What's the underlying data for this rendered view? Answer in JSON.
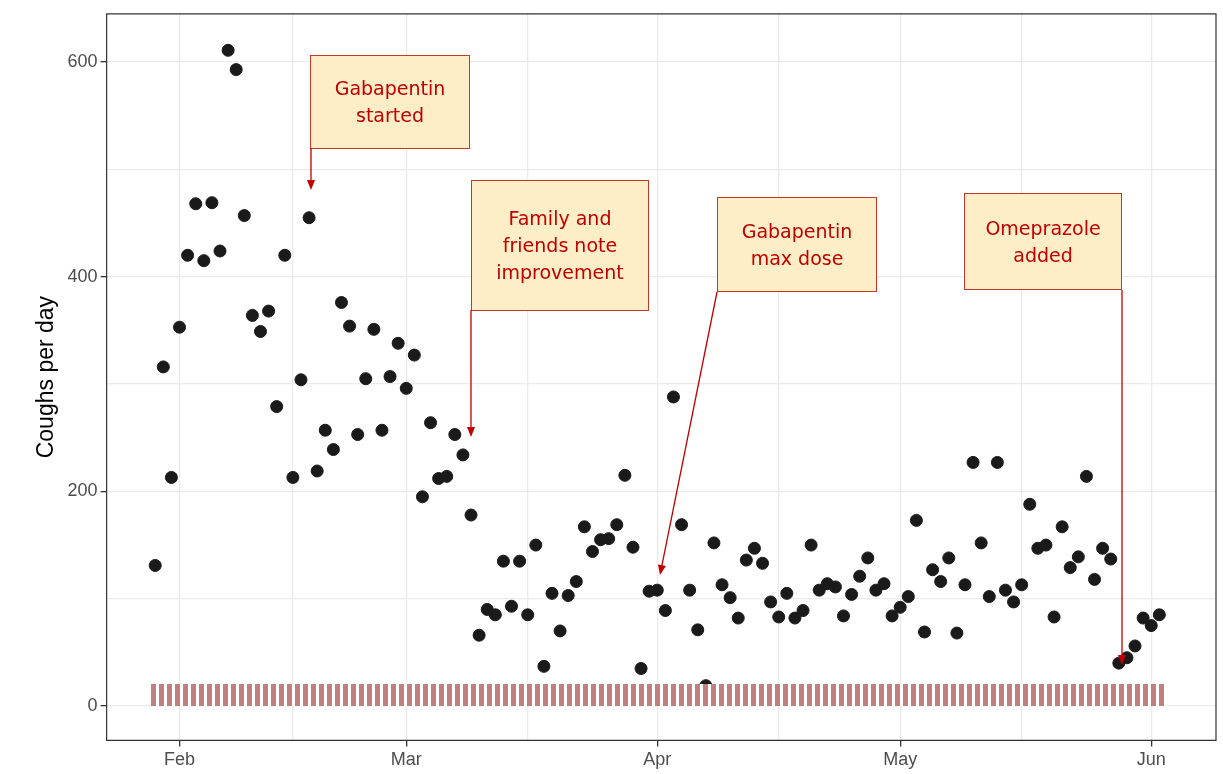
{
  "chart_data": {
    "type": "scatter",
    "ylabel": "Coughs per day",
    "x": [
      "--01-29",
      "--01-30",
      "--01-31",
      "--02-01",
      "--02-02",
      "--02-03",
      "--02-04",
      "--02-05",
      "--02-06",
      "--02-07",
      "--02-08",
      "--02-09",
      "--02-10",
      "--02-11",
      "--02-12",
      "--02-13",
      "--02-14",
      "--02-15",
      "--02-16",
      "--02-17",
      "--02-18",
      "--02-19",
      "--02-20",
      "--02-21",
      "--02-22",
      "--02-23",
      "--02-24",
      "--02-25",
      "--02-26",
      "--02-27",
      "--02-28",
      "--03-01",
      "--03-02",
      "--03-03",
      "--03-04",
      "--03-05",
      "--03-06",
      "--03-07",
      "--03-08",
      "--03-09",
      "--03-10",
      "--03-11",
      "--03-12",
      "--03-13",
      "--03-14",
      "--03-15",
      "--03-16",
      "--03-17",
      "--03-18",
      "--03-19",
      "--03-20",
      "--03-21",
      "--03-22",
      "--03-23",
      "--03-24",
      "--03-25",
      "--03-26",
      "--03-27",
      "--03-28",
      "--03-29",
      "--03-30",
      "--03-31",
      "--04-01",
      "--04-02",
      "--04-03",
      "--04-04",
      "--04-05",
      "--04-06",
      "--04-07",
      "--04-08",
      "--04-09",
      "--04-10",
      "--04-11",
      "--04-12",
      "--04-13",
      "--04-14",
      "--04-15",
      "--04-16",
      "--04-17",
      "--04-18",
      "--04-19",
      "--04-20",
      "--04-21",
      "--04-22",
      "--04-23",
      "--04-24",
      "--04-25",
      "--04-26",
      "--04-27",
      "--04-28",
      "--04-29",
      "--04-30",
      "--05-01",
      "--05-02",
      "--05-03",
      "--05-04",
      "--05-05",
      "--05-06",
      "--05-07",
      "--05-08",
      "--05-09",
      "--05-10",
      "--05-11",
      "--05-12",
      "--05-13",
      "--05-14",
      "--05-15",
      "--05-16",
      "--05-17",
      "--05-18",
      "--05-19",
      "--05-20",
      "--05-21",
      "--05-22",
      "--05-23",
      "--05-24",
      "--05-25",
      "--05-26",
      "--05-27",
      "--05-28",
      "--05-29",
      "--05-30",
      "--05-31",
      "--06-01",
      "--06-02"
    ],
    "series": [
      {
        "color": "#1a1a1a",
        "values": [
          131,
          316,
          213,
          353,
          420,
          468,
          415,
          469,
          424,
          611,
          593,
          457,
          364,
          349,
          368,
          279,
          420,
          213,
          304,
          455,
          219,
          257,
          239,
          376,
          354,
          253,
          305,
          351,
          257,
          307,
          338,
          296,
          327,
          195,
          264,
          212,
          214,
          253,
          234,
          178,
          66,
          90,
          85,
          135,
          93,
          135,
          85,
          150,
          37,
          105,
          70,
          103,
          116,
          167,
          144,
          155,
          156,
          169,
          215,
          148,
          35,
          107,
          108,
          89,
          288,
          169,
          108,
          71,
          19,
          152,
          113,
          101,
          82,
          136,
          147,
          133,
          97,
          83,
          105,
          82,
          89,
          150,
          108,
          114,
          111,
          84,
          104,
          121,
          138,
          108,
          114,
          84,
          92,
          102,
          173,
          69,
          127,
          116,
          138,
          68,
          113,
          227,
          152,
          102,
          227,
          108,
          97,
          113,
          188,
          147,
          150,
          83,
          167,
          129,
          139,
          214,
          118,
          147,
          137,
          40,
          45,
          56,
          82,
          75,
          85
        ]
      }
    ],
    "marker": "circle",
    "xlim": [
      "--01-23",
      "--06-09"
    ],
    "xticks": [
      {
        "value": "--02-01",
        "label": "Feb"
      },
      {
        "value": "--02-15",
        "label": null
      },
      {
        "value": "--03-01",
        "label": "Mar"
      },
      {
        "value": "--03-16",
        "label": null
      },
      {
        "value": "--04-01",
        "label": "Apr"
      },
      {
        "value": "--04-16",
        "label": null
      },
      {
        "value": "--05-01",
        "label": "May"
      },
      {
        "value": "--05-16",
        "label": null
      },
      {
        "value": "--06-01",
        "label": "Jun"
      }
    ],
    "ylim": [
      -32,
      645
    ],
    "yticks": [
      0,
      {
        "value": 100,
        "label": null
      },
      200,
      {
        "value": 300,
        "label": null
      },
      400,
      {
        "value": 500,
        "label": null
      },
      600
    ],
    "grid": true,
    "annotations": [
      "Gabapentin started",
      "Family and friends note improvement",
      "Gabapentin max dose",
      "Omeprazole added"
    ]
  }
}
